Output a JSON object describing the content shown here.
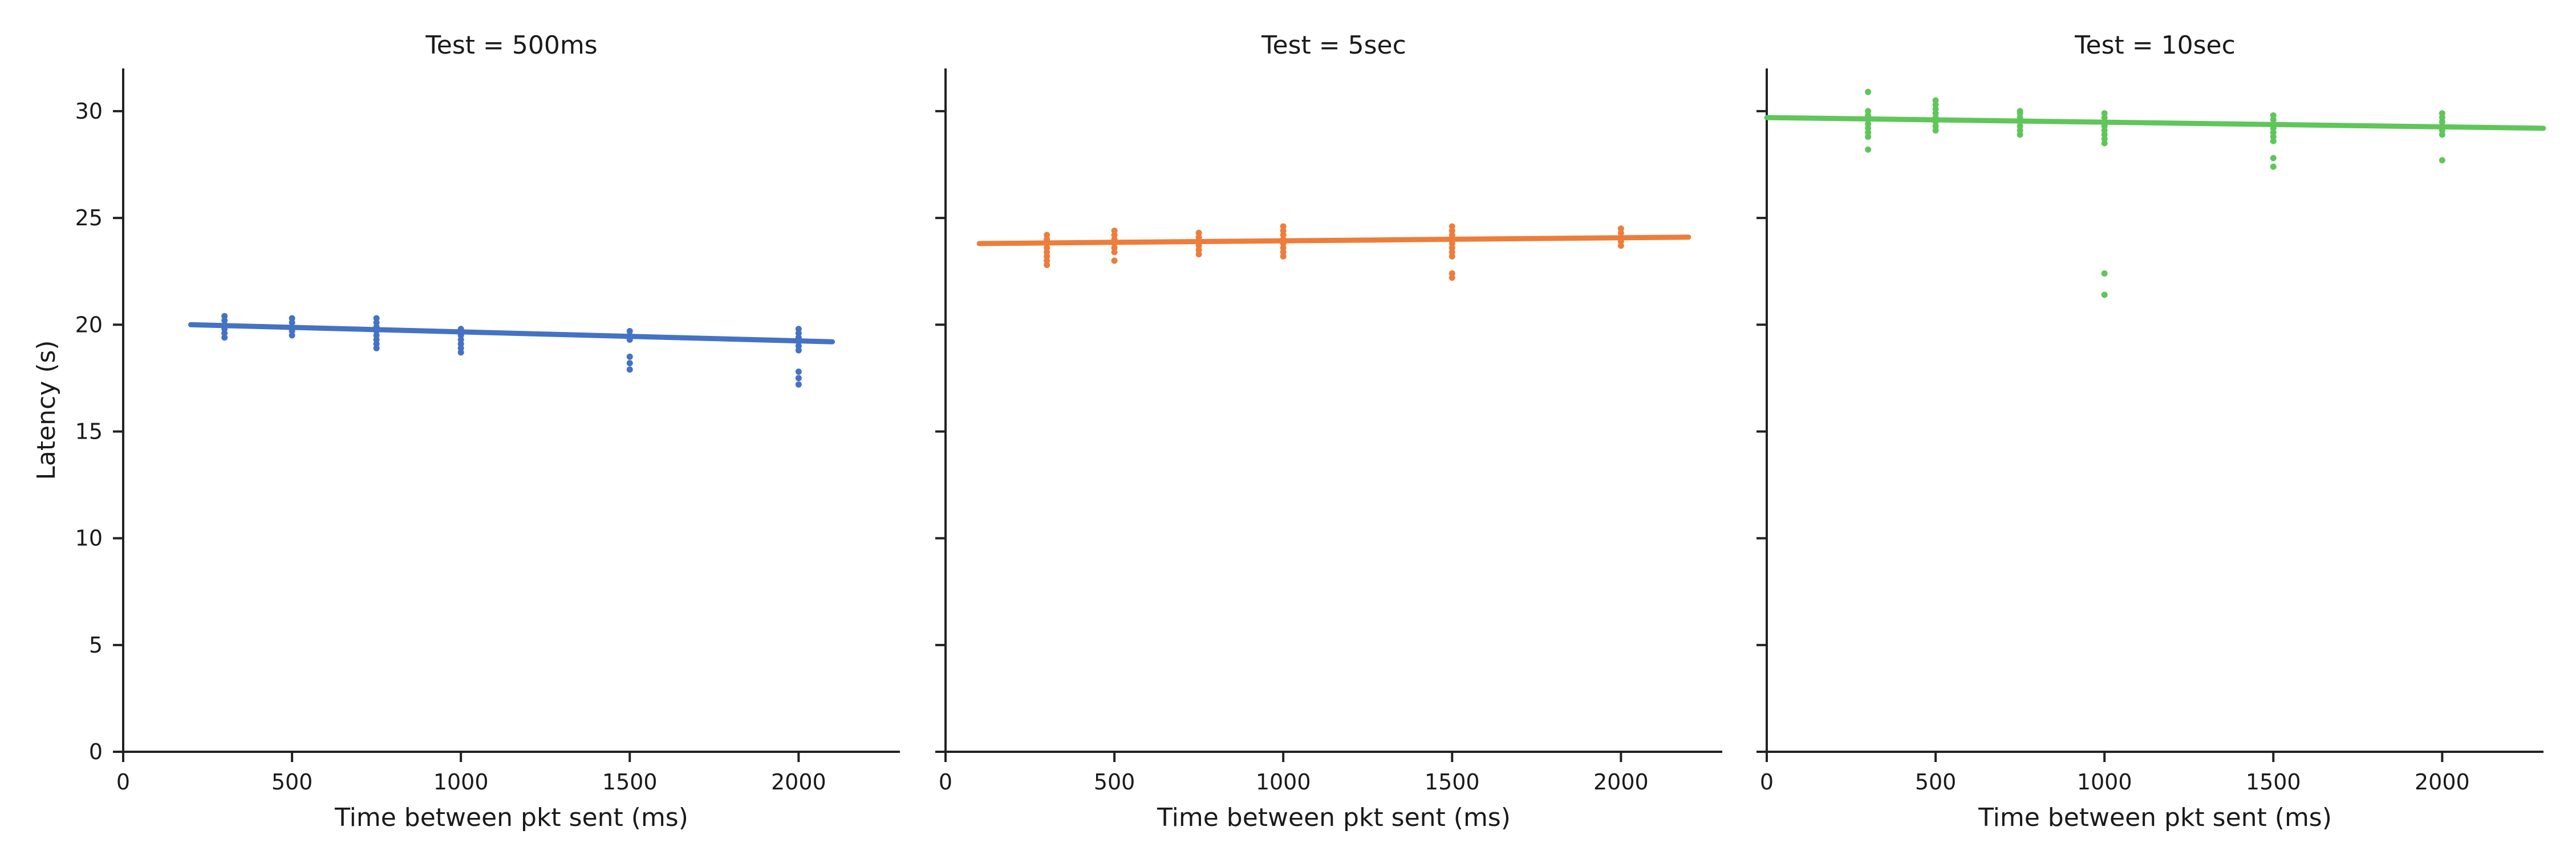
{
  "chart_data": [
    {
      "type": "scatter",
      "title": "Test = 500ms",
      "xlabel": "Time between pkt sent (ms)",
      "ylabel": "Latency (s)",
      "xlim": [
        0,
        2300
      ],
      "ylim": [
        0,
        32
      ],
      "xticks": [
        0,
        500,
        1000,
        1500,
        2000
      ],
      "yticks": [
        0,
        5,
        10,
        15,
        20,
        25,
        30
      ],
      "grid": false,
      "color": "#4472c4",
      "series": [
        {
          "values": [
            {
              "x": 300,
              "y": [
                19.4,
                19.6,
                19.8,
                20.0,
                20.2,
                20.4
              ]
            },
            {
              "x": 500,
              "y": [
                19.5,
                19.7,
                19.9,
                20.1,
                20.3
              ]
            },
            {
              "x": 750,
              "y": [
                18.9,
                19.1,
                19.3,
                19.5,
                19.7,
                19.9,
                20.1,
                20.3
              ]
            },
            {
              "x": 1000,
              "y": [
                18.7,
                18.9,
                19.1,
                19.3,
                19.5,
                19.7,
                19.8
              ]
            },
            {
              "x": 1500,
              "y": [
                17.9,
                18.2,
                18.5,
                19.3,
                19.5,
                19.7
              ]
            },
            {
              "x": 2000,
              "y": [
                17.2,
                17.5,
                17.8,
                18.8,
                19.0,
                19.2,
                19.4,
                19.6,
                19.8
              ]
            }
          ],
          "fit": {
            "x": [
              200,
              2100
            ],
            "y": [
              20.0,
              19.2
            ]
          }
        }
      ]
    },
    {
      "type": "scatter",
      "title": "Test = 5sec",
      "xlabel": "Time between pkt sent (ms)",
      "ylabel": "",
      "xlim": [
        0,
        2300
      ],
      "ylim": [
        0,
        32
      ],
      "xticks": [
        0,
        500,
        1000,
        1500,
        2000
      ],
      "yticks": [
        0,
        5,
        10,
        15,
        20,
        25,
        30
      ],
      "grid": false,
      "color": "#ed7d3a",
      "series": [
        {
          "values": [
            {
              "x": 300,
              "y": [
                22.8,
                23.0,
                23.2,
                23.4,
                23.6,
                23.8,
                24.0,
                24.2
              ]
            },
            {
              "x": 500,
              "y": [
                23.0,
                23.4,
                23.6,
                23.8,
                24.0,
                24.2,
                24.4
              ]
            },
            {
              "x": 750,
              "y": [
                23.3,
                23.5,
                23.7,
                23.9,
                24.1,
                24.3
              ]
            },
            {
              "x": 1000,
              "y": [
                23.2,
                23.4,
                23.6,
                23.8,
                24.0,
                24.2,
                24.4,
                24.6
              ]
            },
            {
              "x": 1500,
              "y": [
                22.2,
                22.4,
                23.2,
                23.4,
                23.6,
                23.8,
                24.0,
                24.2,
                24.4,
                24.6
              ]
            },
            {
              "x": 2000,
              "y": [
                23.7,
                23.9,
                24.1,
                24.3,
                24.5
              ]
            }
          ],
          "fit": {
            "x": [
              100,
              2200
            ],
            "y": [
              23.8,
              24.1
            ]
          }
        }
      ]
    },
    {
      "type": "scatter",
      "title": "Test = 10sec",
      "xlabel": "Time between pkt sent (ms)",
      "ylabel": "",
      "xlim": [
        0,
        2300
      ],
      "ylim": [
        0,
        32
      ],
      "xticks": [
        0,
        500,
        1000,
        1500,
        2000
      ],
      "yticks": [
        0,
        5,
        10,
        15,
        20,
        25,
        30
      ],
      "grid": false,
      "color": "#5fc65a",
      "series": [
        {
          "values": [
            {
              "x": 300,
              "y": [
                28.2,
                28.8,
                29.0,
                29.2,
                29.4,
                29.6,
                29.8,
                30.0,
                30.9
              ]
            },
            {
              "x": 500,
              "y": [
                29.1,
                29.3,
                29.5,
                29.7,
                29.9,
                30.1,
                30.3,
                30.5
              ]
            },
            {
              "x": 750,
              "y": [
                28.9,
                29.1,
                29.3,
                29.5,
                29.7,
                29.9,
                30.0
              ]
            },
            {
              "x": 1000,
              "y": [
                21.4,
                22.4,
                28.5,
                28.7,
                28.9,
                29.1,
                29.3,
                29.5,
                29.7,
                29.9
              ]
            },
            {
              "x": 1500,
              "y": [
                27.4,
                27.8,
                28.6,
                28.8,
                29.0,
                29.2,
                29.4,
                29.6,
                29.8
              ]
            },
            {
              "x": 2000,
              "y": [
                27.7,
                28.9,
                29.1,
                29.3,
                29.5,
                29.7,
                29.9
              ]
            }
          ],
          "fit": {
            "x": [
              0,
              2300
            ],
            "y": [
              29.7,
              29.2
            ]
          }
        }
      ]
    }
  ]
}
